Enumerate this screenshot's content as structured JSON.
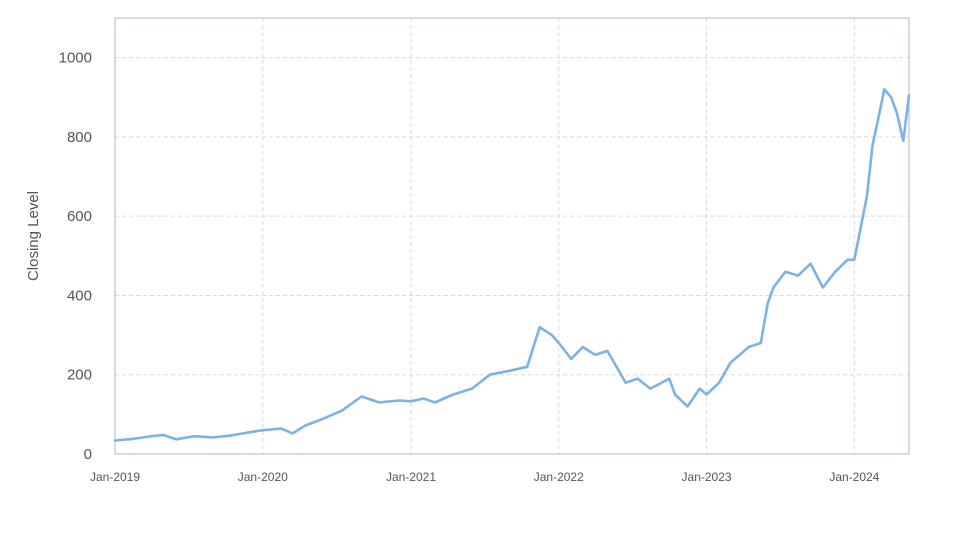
{
  "chart_data": {
    "type": "line",
    "title": "",
    "xlabel": "",
    "ylabel": "Closing Level",
    "ylim": [
      0,
      1100
    ],
    "xlim": [
      "2019-01-01",
      "2024-05-15"
    ],
    "grid": true,
    "colors": {
      "series": "#7cb2e6",
      "grid": "#d9d9d9",
      "frame": "#bfc8d6",
      "text": "#555555"
    },
    "y_ticks": [
      0,
      200,
      400,
      600,
      800,
      1000
    ],
    "x_ticks": [
      {
        "date": "2019-01-01",
        "label": "Jan-2019"
      },
      {
        "date": "2020-01-01",
        "label": "Jan-2020"
      },
      {
        "date": "2021-01-01",
        "label": "Jan-2021"
      },
      {
        "date": "2022-01-01",
        "label": "Jan-2022"
      },
      {
        "date": "2023-01-01",
        "label": "Jan-2023"
      },
      {
        "date": "2024-01-01",
        "label": "Jan-2024"
      }
    ],
    "series": [
      {
        "x": [
          "2019-01-01",
          "2019-02-15",
          "2019-04-01",
          "2019-05-01",
          "2019-06-01",
          "2019-07-15",
          "2019-09-01",
          "2019-10-15",
          "2019-12-01",
          "2020-01-01",
          "2020-02-15",
          "2020-03-15",
          "2020-04-15",
          "2020-06-01",
          "2020-07-15",
          "2020-09-01",
          "2020-10-15",
          "2020-12-01",
          "2021-01-01",
          "2021-02-01",
          "2021-03-01",
          "2021-04-15",
          "2021-06-01",
          "2021-07-15",
          "2021-09-01",
          "2021-10-15",
          "2021-11-15",
          "2021-12-15",
          "2022-01-01",
          "2022-02-01",
          "2022-03-01",
          "2022-04-01",
          "2022-05-01",
          "2022-06-15",
          "2022-07-15",
          "2022-08-15",
          "2022-10-01",
          "2022-10-15",
          "2022-11-15",
          "2022-12-15",
          "2023-01-01",
          "2023-02-01",
          "2023-03-01",
          "2023-04-15",
          "2023-05-15",
          "2023-06-01",
          "2023-06-15",
          "2023-07-15",
          "2023-08-15",
          "2023-09-15",
          "2023-10-15",
          "2023-11-15",
          "2023-12-15",
          "2024-01-01",
          "2024-02-01",
          "2024-02-15",
          "2024-03-01",
          "2024-03-15",
          "2024-04-01",
          "2024-04-15",
          "2024-05-01",
          "2024-05-15"
        ],
        "y": [
          34,
          38,
          45,
          48,
          37,
          45,
          42,
          47,
          55,
          60,
          64,
          52,
          72,
          90,
          110,
          145,
          130,
          135,
          133,
          140,
          130,
          150,
          165,
          200,
          210,
          220,
          320,
          300,
          280,
          240,
          270,
          250,
          260,
          180,
          190,
          165,
          190,
          150,
          120,
          165,
          150,
          180,
          230,
          270,
          280,
          380,
          420,
          460,
          450,
          480,
          420,
          460,
          490,
          490,
          650,
          780,
          850,
          920,
          900,
          860,
          790,
          905
        ]
      }
    ]
  }
}
